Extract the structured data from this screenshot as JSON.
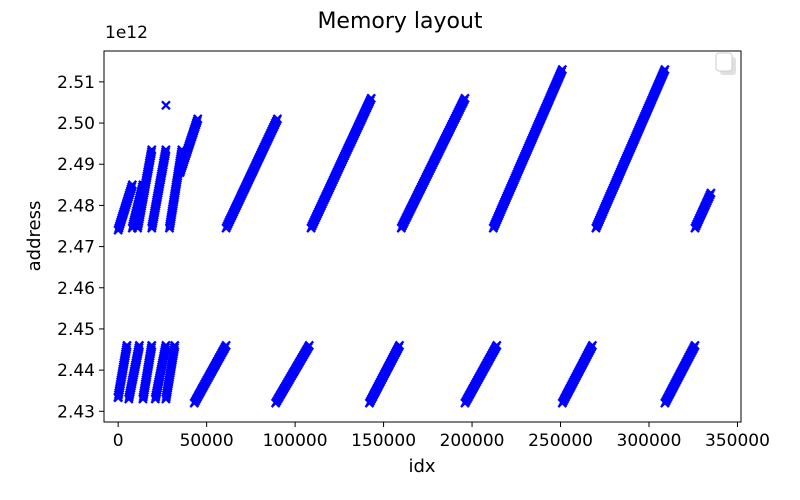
{
  "chart_data": {
    "type": "scatter",
    "title": "Memory layout",
    "xlabel": "idx",
    "ylabel": "address",
    "y_offset_label": "1e12",
    "xlim": [
      -8000,
      352000
    ],
    "ylim": [
      2.4274,
      2.5175
    ],
    "x_ticks": [
      0,
      50000,
      100000,
      150000,
      200000,
      250000,
      300000,
      350000
    ],
    "x_tick_labels": [
      "0",
      "50000",
      "100000",
      "150000",
      "200000",
      "250000",
      "300000",
      "350000"
    ],
    "y_ticks": [
      2.43,
      2.44,
      2.45,
      2.46,
      2.47,
      2.48,
      2.49,
      2.5,
      2.51
    ],
    "y_tick_labels": [
      "2.43",
      "2.44",
      "2.45",
      "2.46",
      "2.47",
      "2.48",
      "2.49",
      "2.50",
      "2.51"
    ],
    "grid": false,
    "legend": {
      "placement": "top-right",
      "entries": []
    },
    "marker": "x",
    "color": "#0000ff",
    "series": [
      {
        "segments": [
          {
            "x": [
              0,
              5000
            ],
            "y": [
              2.4335,
              2.446
            ]
          },
          {
            "x": [
              0,
              8000
            ],
            "y": [
              2.474,
              2.485
            ]
          },
          {
            "x": [
              6000,
              12000
            ],
            "y": [
              2.433,
              2.446
            ]
          },
          {
            "x": [
              8000,
              14000
            ],
            "y": [
              2.4745,
              2.485
            ]
          },
          {
            "x": [
              14000,
              19000
            ],
            "y": [
              2.433,
              2.446
            ]
          },
          {
            "x": [
              11000,
              19000
            ],
            "y": [
              2.4745,
              2.4935
            ]
          },
          {
            "x": [
              21000,
              27000
            ],
            "y": [
              2.433,
              2.446
            ]
          },
          {
            "x": [
              19000,
              27000
            ],
            "y": [
              2.4745,
              2.4935
            ]
          },
          {
            "x": [
              27000,
              32000
            ],
            "y": [
              2.433,
              2.446
            ]
          },
          {
            "x": [
              29000,
              36000
            ],
            "y": [
              2.4745,
              2.4935
            ]
          },
          {
            "x": [
              35000,
              45000
            ],
            "y": [
              2.488,
              2.501
            ]
          },
          {
            "x": [
              43000,
              61000
            ],
            "y": [
              2.432,
              2.446
            ]
          },
          {
            "x": [
              61000,
              90000
            ],
            "y": [
              2.4745,
              2.501
            ]
          },
          {
            "x": [
              89000,
              108000
            ],
            "y": [
              2.432,
              2.446
            ]
          },
          {
            "x": [
              109000,
              143000
            ],
            "y": [
              2.4745,
              2.506
            ]
          },
          {
            "x": [
              142000,
              159000
            ],
            "y": [
              2.432,
              2.446
            ]
          },
          {
            "x": [
              160000,
              196000
            ],
            "y": [
              2.4745,
              2.506
            ]
          },
          {
            "x": [
              196000,
              214000
            ],
            "y": [
              2.432,
              2.446
            ]
          },
          {
            "x": [
              212000,
              251000
            ],
            "y": [
              2.4745,
              2.513
            ]
          },
          {
            "x": [
              251000,
              268000
            ],
            "y": [
              2.432,
              2.446
            ]
          },
          {
            "x": [
              270000,
              309000
            ],
            "y": [
              2.4745,
              2.513
            ]
          },
          {
            "x": [
              309000,
              326000
            ],
            "y": [
              2.432,
              2.446
            ]
          },
          {
            "x": [
              326000,
              335000
            ],
            "y": [
              2.4745,
              2.483
            ]
          }
        ],
        "outliers": [
          {
            "x": 27000,
            "y": 2.5043
          },
          {
            "x": 0,
            "y": 2.4333
          }
        ]
      }
    ]
  }
}
